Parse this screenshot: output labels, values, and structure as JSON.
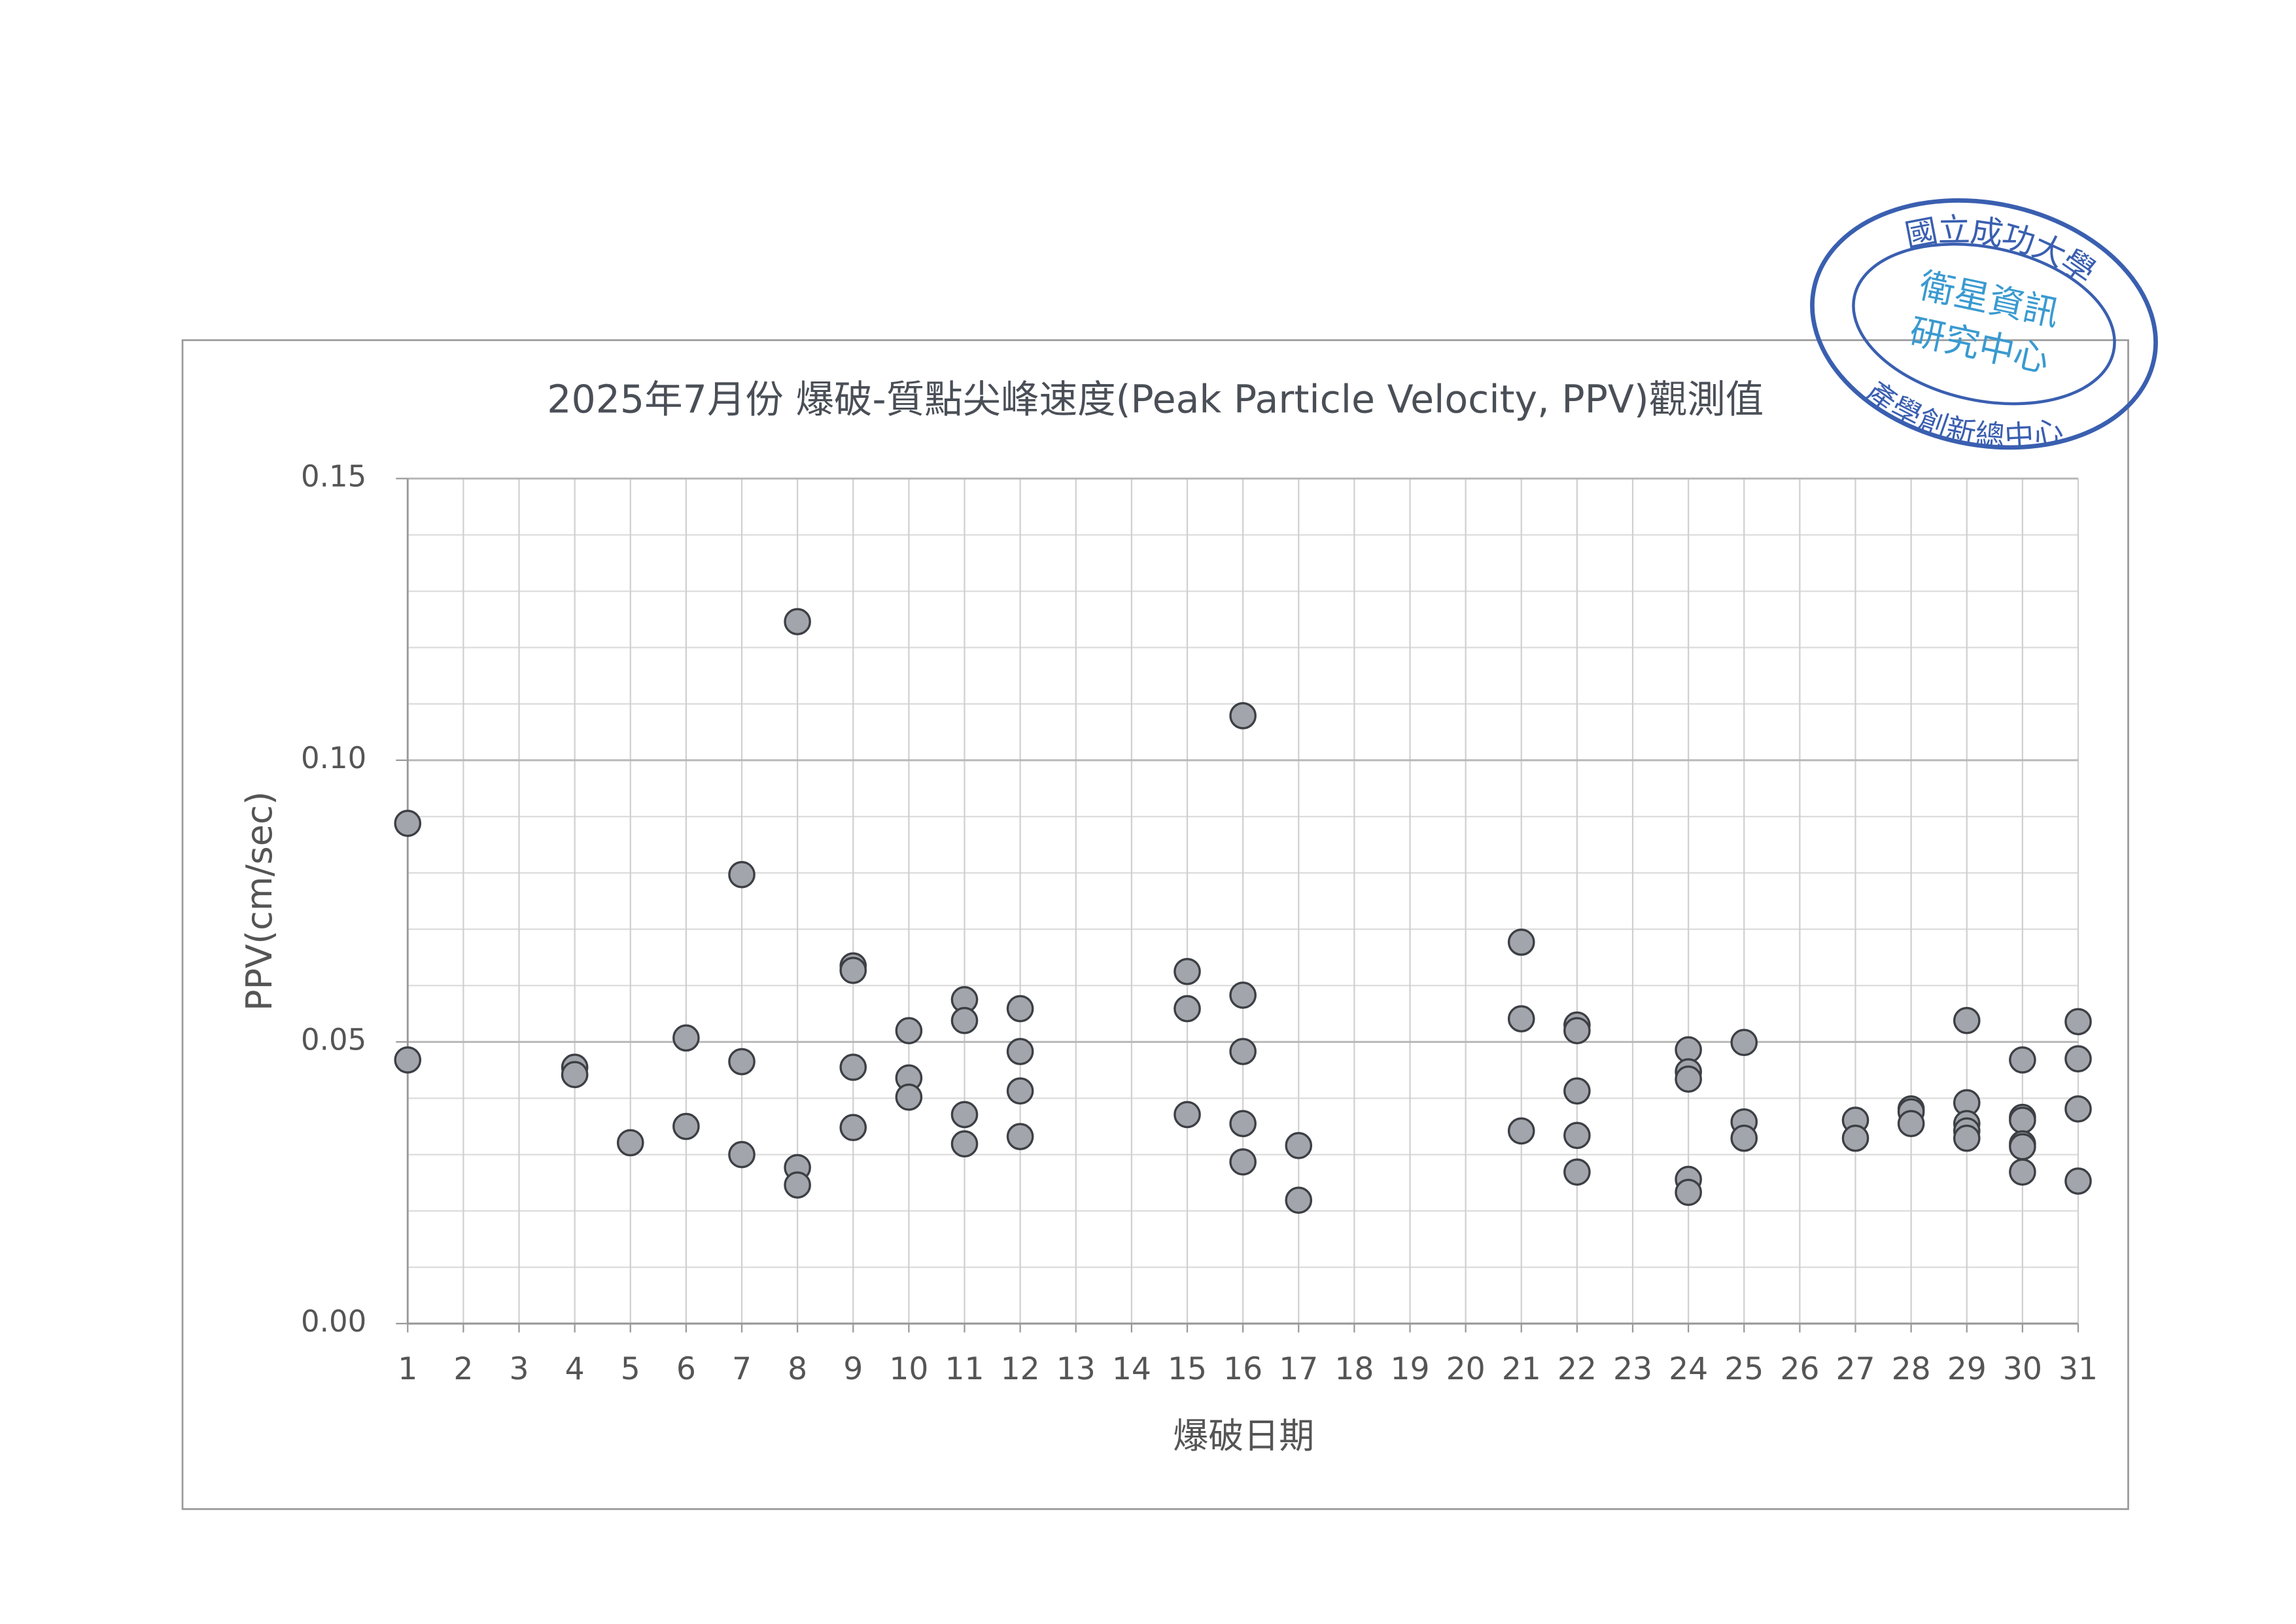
{
  "chart_data": {
    "type": "scatter",
    "title": "2025年7月份 爆破-質點尖峰速度(Peak Particle Velocity, PPV)觀測值",
    "x_label": "爆破日期",
    "y_label": "PPV(cm/sec)",
    "x": [
      1,
      1,
      4,
      4,
      5,
      6,
      6,
      7,
      7,
      7,
      8,
      8,
      8,
      9,
      9,
      9,
      9,
      10,
      10,
      10,
      11,
      11,
      11,
      11,
      12,
      12,
      12,
      12,
      15,
      15,
      15,
      16,
      16,
      16,
      16,
      16,
      17,
      17,
      21,
      21,
      21,
      22,
      22,
      22,
      22,
      22,
      24,
      24,
      24,
      24,
      24,
      25,
      25,
      25,
      27,
      27,
      28,
      28,
      28,
      29,
      29,
      29,
      29,
      29,
      30,
      30,
      30,
      30,
      30,
      30,
      31,
      31,
      31,
      31
    ],
    "values": [
      0.0888,
      0.0468,
      0.0455,
      0.0442,
      0.0321,
      0.0507,
      0.035,
      0.0797,
      0.0465,
      0.03,
      0.1246,
      0.0277,
      0.0246,
      0.0635,
      0.0627,
      0.0455,
      0.0348,
      0.052,
      0.0436,
      0.0402,
      0.0575,
      0.0538,
      0.0371,
      0.0319,
      0.0559,
      0.0483,
      0.0413,
      0.0332,
      0.0625,
      0.0559,
      0.0371,
      0.1079,
      0.0583,
      0.0483,
      0.0355,
      0.0287,
      0.0316,
      0.0219,
      0.0677,
      0.0541,
      0.0342,
      0.053,
      0.052,
      0.0413,
      0.0334,
      0.0269,
      0.0486,
      0.0447,
      0.0434,
      0.0256,
      0.0233,
      0.0499,
      0.0358,
      0.0329,
      0.0361,
      0.0329,
      0.0381,
      0.0376,
      0.0355,
      0.0538,
      0.0392,
      0.0355,
      0.0342,
      0.0329,
      0.0468,
      0.0366,
      0.0361,
      0.0319,
      0.0314,
      0.0269,
      0.0536,
      0.047,
      0.0381,
      0.0253
    ],
    "color": "#a2a5ab",
    "xlim": [
      1,
      31
    ],
    "xticks": [
      1,
      2,
      3,
      4,
      5,
      6,
      7,
      8,
      9,
      10,
      11,
      12,
      13,
      14,
      15,
      16,
      17,
      18,
      19,
      20,
      21,
      22,
      23,
      24,
      25,
      26,
      27,
      28,
      29,
      30,
      31
    ],
    "ylim": [
      0,
      0.15
    ],
    "yticks": [
      {
        "value": 0,
        "label": "0.00"
      },
      {
        "value": 0.05,
        "label": "0.05"
      },
      {
        "value": 0.1,
        "label": "0.10"
      },
      {
        "value": 0.15,
        "label": "0.15"
      }
    ],
    "minor_yticks": [
      0.01,
      0.02,
      0.03,
      0.04,
      0.06,
      0.07,
      0.08,
      0.09,
      0.11,
      0.12,
      0.13,
      0.14
    ],
    "grid": true
  },
  "stamp": {
    "outer_top": "國立成功大學",
    "outer_bottom": "產學創新總中心",
    "inner": [
      "衛星資訊",
      "研究中心"
    ]
  }
}
